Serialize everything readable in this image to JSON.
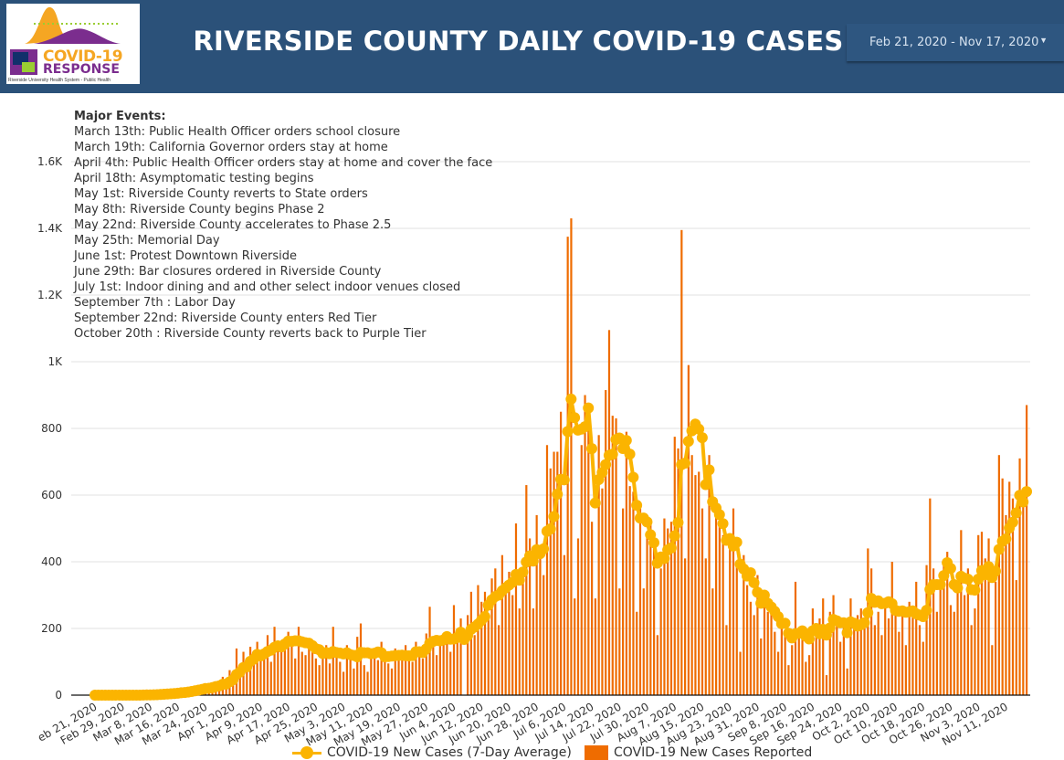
{
  "header": {
    "title": "RIVERSIDE COUNTY DAILY COVID-19 CASES",
    "logo": {
      "line1": "COVID-19",
      "line2": "RESPONSE",
      "subtitle": "Riverside University Health System - Public Health"
    },
    "date_range": "Feb 21, 2020 - Nov 17, 2020",
    "date_caret_icon": "caret-down-icon"
  },
  "events": {
    "heading": "Major Events:",
    "items": [
      "March 13th: Public Health Officer orders school closure",
      "March 19th: California Governor orders stay at home",
      "April 4th: Public Health Officer orders stay at home and cover the face",
      "April 18th: Asymptomatic testing begins",
      "May 1st: Riverside County reverts to State orders",
      "May 8th: Riverside County begins Phase 2",
      "May 22nd: Riverside County accelerates to Phase 2.5",
      "May 25th: Memorial Day",
      "June 1st: Protest Downtown Riverside",
      "June 29th: Bar closures ordered in Riverside County",
      "July 1st: Indoor dining and and other select indoor venues closed",
      "September 7th : Labor Day",
      "September 22nd: Riverside County enters Red Tier",
      "October 20th : Riverside County reverts back to Purple Tier"
    ]
  },
  "chart_data": {
    "type": "bar+line",
    "x_start": "Feb 21, 2020",
    "x_end": "Nov 17, 2020",
    "x_interval": "daily",
    "x_tick_labels": [
      "eb 21, 2020",
      "Feb 29, 2020",
      "Mar 8, 2020",
      "Mar 16, 2020",
      "Mar 24, 2020",
      "Apr 1, 2020",
      "Apr 9, 2020",
      "Apr 17, 2020",
      "Apr 25, 2020",
      "May 3, 2020",
      "May 11, 2020",
      "May 19, 2020",
      "May 27, 2020",
      "Jun 4, 2020",
      "Jun 12, 2020",
      "Jun 20, 2020",
      "Jun 28, 2020",
      "Jul 6, 2020",
      "Jul 14, 2020",
      "Jul 22, 2020",
      "Jul 30, 2020",
      "Aug 7, 2020",
      "Aug 15, 2020",
      "Aug 23, 2020",
      "Aug 31, 2020",
      "Sep 8, 2020",
      "Sep 16, 2020",
      "Sep 24, 2020",
      "Oct 2, 2020",
      "Oct 10, 2020",
      "Oct 18, 2020",
      "Oct 26, 2020",
      "Nov 3, 2020",
      "Nov 11, 2020"
    ],
    "y_ticks": [
      0,
      200,
      400,
      600,
      800,
      1000,
      1200,
      1400,
      1600
    ],
    "y_tick_labels": [
      "0",
      "200",
      "400",
      "600",
      "800",
      "1K",
      "1.2K",
      "1.4K",
      "1.6K"
    ],
    "ylim": [
      0,
      1600
    ],
    "grid": true,
    "legend_position": "bottom",
    "series": [
      {
        "name": "COVID-19 New Cases (7-Day Average)",
        "type": "line",
        "color": "#fbb400",
        "window_days": 7
      },
      {
        "name": "COVID-19 New Cases Reported",
        "type": "bar",
        "color": "#ef6c00",
        "values": [
          0,
          0,
          0,
          0,
          0,
          0,
          0,
          0,
          0,
          0,
          0,
          0,
          0,
          1,
          1,
          2,
          1,
          3,
          2,
          4,
          5,
          6,
          8,
          5,
          10,
          12,
          9,
          15,
          18,
          22,
          20,
          25,
          30,
          15,
          28,
          40,
          35,
          55,
          30,
          75,
          60,
          140,
          90,
          130,
          70,
          145,
          120,
          160,
          110,
          130,
          180,
          100,
          205,
          150,
          140,
          170,
          190,
          175,
          110,
          205,
          130,
          120,
          160,
          140,
          110,
          90,
          125,
          150,
          95,
          205,
          120,
          100,
          70,
          150,
          110,
          80,
          175,
          215,
          90,
          70,
          130,
          120,
          105,
          160,
          130,
          95,
          80,
          140,
          125,
          110,
          150,
          125,
          100,
          160,
          140,
          110,
          185,
          265,
          170,
          120,
          150,
          160,
          180,
          130,
          270,
          200,
          230,
          0,
          240,
          310,
          180,
          330,
          280,
          310,
          240,
          350,
          380,
          210,
          420,
          340,
          370,
          300,
          515,
          260,
          380,
          630,
          470,
          260,
          540,
          430,
          360,
          750,
          680,
          730,
          730,
          850,
          420,
          1375,
          1430,
          290,
          470,
          750,
          900,
          815,
          520,
          290,
          780,
          620,
          915,
          1095,
          838,
          830,
          320,
          560,
          790,
          627,
          610,
          250,
          560,
          320,
          480,
          520,
          460,
          180,
          380,
          530,
          500,
          520,
          775,
          740,
          1395,
          410,
          990,
          720,
          660,
          670,
          560,
          410,
          720,
          320,
          590,
          520,
          480,
          210,
          450,
          560,
          400,
          130,
          420,
          330,
          280,
          240,
          360,
          170,
          300,
          250,
          250,
          190,
          130,
          210,
          180,
          90,
          150,
          340,
          200,
          180,
          100,
          120,
          260,
          200,
          230,
          290,
          60,
          250,
          300,
          230,
          160,
          230,
          80,
          290,
          220,
          240,
          260,
          200,
          440,
          380,
          210,
          250,
          180,
          270,
          230,
          400,
          240,
          190,
          260,
          150,
          280,
          250,
          340,
          210,
          160,
          390,
          590,
          380,
          250,
          340,
          400,
          430,
          270,
          250,
          310,
          495,
          300,
          380,
          210,
          260,
          480,
          490,
          410,
          470,
          150,
          340,
          720,
          650,
          540,
          640,
          590,
          345,
          710,
          580,
          870
        ]
      }
    ]
  }
}
